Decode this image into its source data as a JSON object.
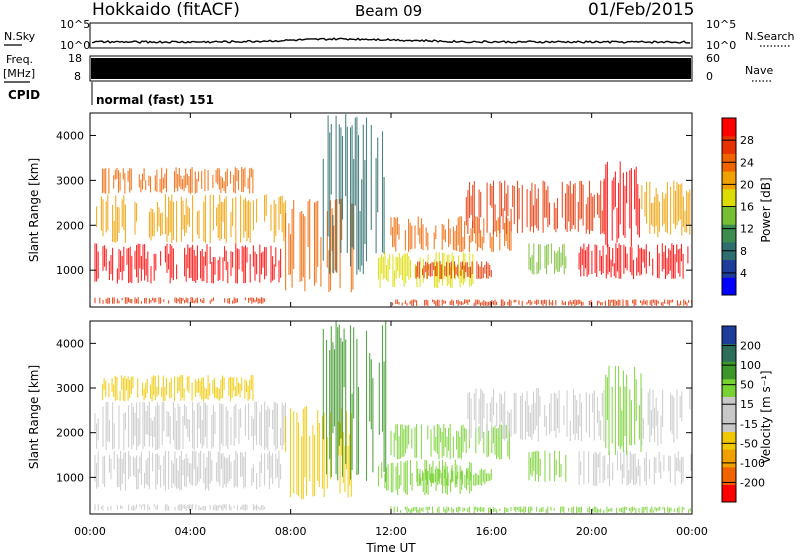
{
  "header": {
    "station": "Hokkaido (fitACF)",
    "beam": "Beam 09",
    "date": "01/Feb/2015"
  },
  "noise_panel": {
    "left_label": "N.Sky",
    "right_label": "N.Search",
    "tick_top": "10^5",
    "tick_bottom": "10^0"
  },
  "freq_panel": {
    "left_label_line1": "Freq.",
    "left_label_line2": "[MHz]",
    "right_label": "Nave",
    "left_ticks": [
      "18",
      "8"
    ],
    "right_ticks": [
      "60",
      "0"
    ]
  },
  "cpid_panel": {
    "label": "CPID",
    "value": "normal (fast) 151"
  },
  "chart_data": [
    {
      "type": "heatmap",
      "panel": "power",
      "ylabel": "Slant Range [km]",
      "xlabel": "",
      "x_ticks": [
        "00:00",
        "04:00",
        "08:00",
        "12:00",
        "16:00",
        "20:00",
        "00:00"
      ],
      "x_range_hours": [
        0,
        24
      ],
      "ylim": [
        180,
        4500
      ],
      "y_ticks": [
        1000,
        2000,
        3000,
        4000
      ],
      "colorbar": {
        "label": "Power [dB]",
        "ticks": [
          "28",
          "24",
          "20",
          "16",
          "12",
          "8",
          "4"
        ],
        "colors": [
          "#0000ff",
          "#1e3c9b",
          "#2f6e6e",
          "#3c8c50",
          "#78be32",
          "#dcdc00",
          "#f0a000",
          "#f06400",
          "#e63200",
          "#ff0000"
        ]
      },
      "regions": [
        {
          "t0": 0.2,
          "t1": 7.6,
          "r0": 700,
          "r1": 1600,
          "value": 28
        },
        {
          "t0": 0.2,
          "t1": 7.8,
          "r0": 1600,
          "r1": 2700,
          "value": 18
        },
        {
          "t0": 0.5,
          "t1": 6.5,
          "r0": 2700,
          "r1": 3300,
          "value": 22
        },
        {
          "t0": 0.2,
          "t1": 7,
          "r0": 250,
          "r1": 400,
          "value": 26
        },
        {
          "t0": 7.8,
          "t1": 10.5,
          "r0": 500,
          "r1": 2600,
          "value": 22
        },
        {
          "t0": 9.3,
          "t1": 11.8,
          "r0": 900,
          "r1": 4500,
          "value": 7
        },
        {
          "t0": 11.5,
          "t1": 15.3,
          "r0": 600,
          "r1": 1400,
          "value": 16
        },
        {
          "t0": 13,
          "t1": 16,
          "r0": 800,
          "r1": 1200,
          "value": 24
        },
        {
          "t0": 12,
          "t1": 16.8,
          "r0": 1400,
          "r1": 2200,
          "value": 21
        },
        {
          "t0": 15,
          "t1": 20.5,
          "r0": 1800,
          "r1": 3000,
          "value": 25
        },
        {
          "t0": 17.5,
          "t1": 19,
          "r0": 900,
          "r1": 1600,
          "value": 12
        },
        {
          "t0": 19.5,
          "t1": 24,
          "r0": 800,
          "r1": 1600,
          "value": 29
        },
        {
          "t0": 20.5,
          "t1": 22,
          "r0": 1500,
          "r1": 3500,
          "value": 30
        },
        {
          "t0": 22,
          "t1": 24,
          "r0": 1700,
          "r1": 3000,
          "value": 20
        },
        {
          "t0": 12,
          "t1": 24,
          "r0": 200,
          "r1": 350,
          "value": 24
        }
      ]
    },
    {
      "type": "heatmap",
      "panel": "velocity",
      "ylabel": "Slant Range [km]",
      "xlabel": "Time UT",
      "x_ticks": [
        "00:00",
        "04:00",
        "08:00",
        "12:00",
        "16:00",
        "20:00",
        "00:00"
      ],
      "x_range_hours": [
        0,
        24
      ],
      "ylim": [
        180,
        4500
      ],
      "y_ticks": [
        1000,
        2000,
        3000,
        4000
      ],
      "colorbar": {
        "label": "Velocity [m s⁻¹]",
        "ticks": [
          "200",
          "100",
          "50",
          "15",
          "-15",
          "-50",
          "-100",
          "-200"
        ],
        "colors": [
          "#ff0000",
          "#f06400",
          "#f0a000",
          "#f0c800",
          "#c8c8c8",
          "#c8c8c8",
          "#78d232",
          "#3c9628",
          "#2d6e5a",
          "#1e3c9b"
        ]
      },
      "regions": [
        {
          "t0": 0.2,
          "t1": 7.6,
          "r0": 700,
          "r1": 1600,
          "value": 0
        },
        {
          "t0": 0.2,
          "t1": 7.8,
          "r0": 1600,
          "r1": 2700,
          "value": -5
        },
        {
          "t0": 0.5,
          "t1": 6.5,
          "r0": 2700,
          "r1": 3300,
          "value": -30
        },
        {
          "t0": 0.2,
          "t1": 7,
          "r0": 250,
          "r1": 400,
          "value": 0
        },
        {
          "t0": 7.8,
          "t1": 10.5,
          "r0": 500,
          "r1": 2600,
          "value": -40
        },
        {
          "t0": 9.3,
          "t1": 11.8,
          "r0": 900,
          "r1": 4500,
          "value": 60
        },
        {
          "t0": 11.5,
          "t1": 15.3,
          "r0": 600,
          "r1": 1400,
          "value": 40
        },
        {
          "t0": 13,
          "t1": 16,
          "r0": 800,
          "r1": 1200,
          "value": 45
        },
        {
          "t0": 12,
          "t1": 16.8,
          "r0": 1400,
          "r1": 2200,
          "value": 20
        },
        {
          "t0": 15,
          "t1": 20.5,
          "r0": 1800,
          "r1": 3000,
          "value": 0
        },
        {
          "t0": 17.5,
          "t1": 19,
          "r0": 900,
          "r1": 1600,
          "value": 30
        },
        {
          "t0": 19.5,
          "t1": 24,
          "r0": 800,
          "r1": 1600,
          "value": 5
        },
        {
          "t0": 20.5,
          "t1": 22,
          "r0": 1500,
          "r1": 3500,
          "value": 40
        },
        {
          "t0": 22,
          "t1": 24,
          "r0": 1700,
          "r1": 3000,
          "value": -5
        },
        {
          "t0": 12,
          "t1": 24,
          "r0": 200,
          "r1": 350,
          "value": 30
        }
      ]
    }
  ]
}
